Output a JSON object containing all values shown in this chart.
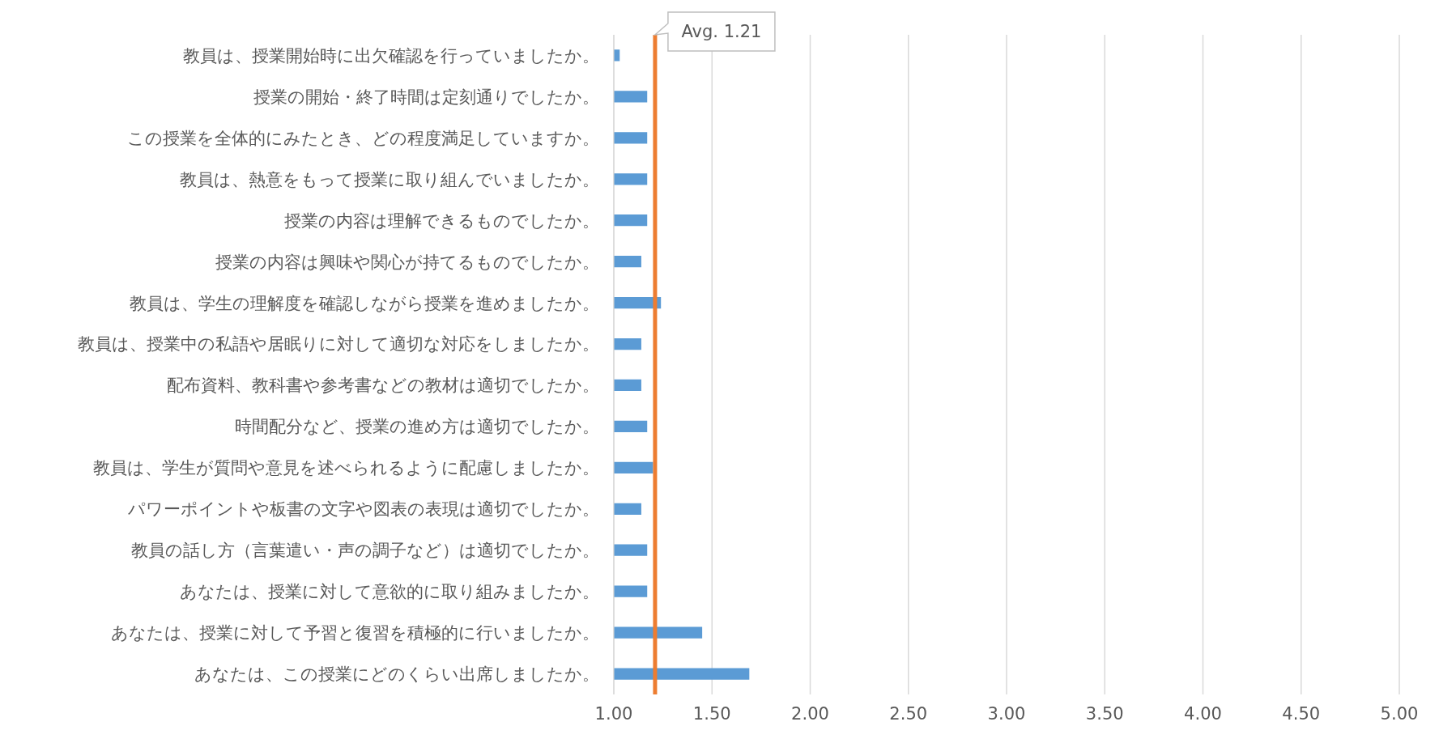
{
  "chart_data": {
    "type": "bar",
    "orientation": "horizontal",
    "categories": [
      "教員は、授業開始時に出欠確認を行っていましたか。",
      "授業の開始・終了時間は定刻通りでしたか。",
      "この授業を全体的にみたとき、どの程度満足していますか。",
      "教員は、熱意をもって授業に取り組んでいましたか。",
      "授業の内容は理解できるものでしたか。",
      "授業の内容は興味や関心が持てるものでしたか。",
      "教員は、学生の理解度を確認しながら授業を進めましたか。",
      "教員は、授業中の私語や居眠りに対して適切な対応をしましたか。",
      "配布資料、教科書や参考書などの教材は適切でしたか。",
      "時間配分など、授業の進め方は適切でしたか。",
      "教員は、学生が質問や意見を述べられるように配慮しましたか。",
      "パワーポイントや板書の文字や図表の表現は適切でしたか。",
      "教員の話し方（言葉遣い・声の調子など）は適切でしたか。",
      "あなたは、授業に対して意欲的に取り組みましたか。",
      "あなたは、授業に対して予習と復習を積極的に行いましたか。",
      "あなたは、この授業にどのくらい出席しましたか。"
    ],
    "values": [
      1.03,
      1.17,
      1.17,
      1.17,
      1.17,
      1.14,
      1.24,
      1.14,
      1.14,
      1.17,
      1.2,
      1.14,
      1.17,
      1.17,
      1.45,
      1.69
    ],
    "color": "#5b9bd5",
    "xlim": [
      1,
      5
    ],
    "xticks": [
      {
        "value": 1,
        "label": "1.00"
      },
      {
        "value": 1.5,
        "label": "1.50"
      },
      {
        "value": 2,
        "label": "2.00"
      },
      {
        "value": 2.5,
        "label": "2.50"
      },
      {
        "value": 3,
        "label": "3.00"
      },
      {
        "value": 3.5,
        "label": "3.50"
      },
      {
        "value": 4,
        "label": "4.00"
      },
      {
        "value": 4.5,
        "label": "4.50"
      },
      {
        "value": 5,
        "label": "5.00"
      }
    ],
    "grid": "x",
    "legend": false,
    "ref_lines": [
      {
        "axis": "x",
        "value": 1.21,
        "label": "Avg. 1.21",
        "color": "#ed7d31"
      }
    ]
  }
}
